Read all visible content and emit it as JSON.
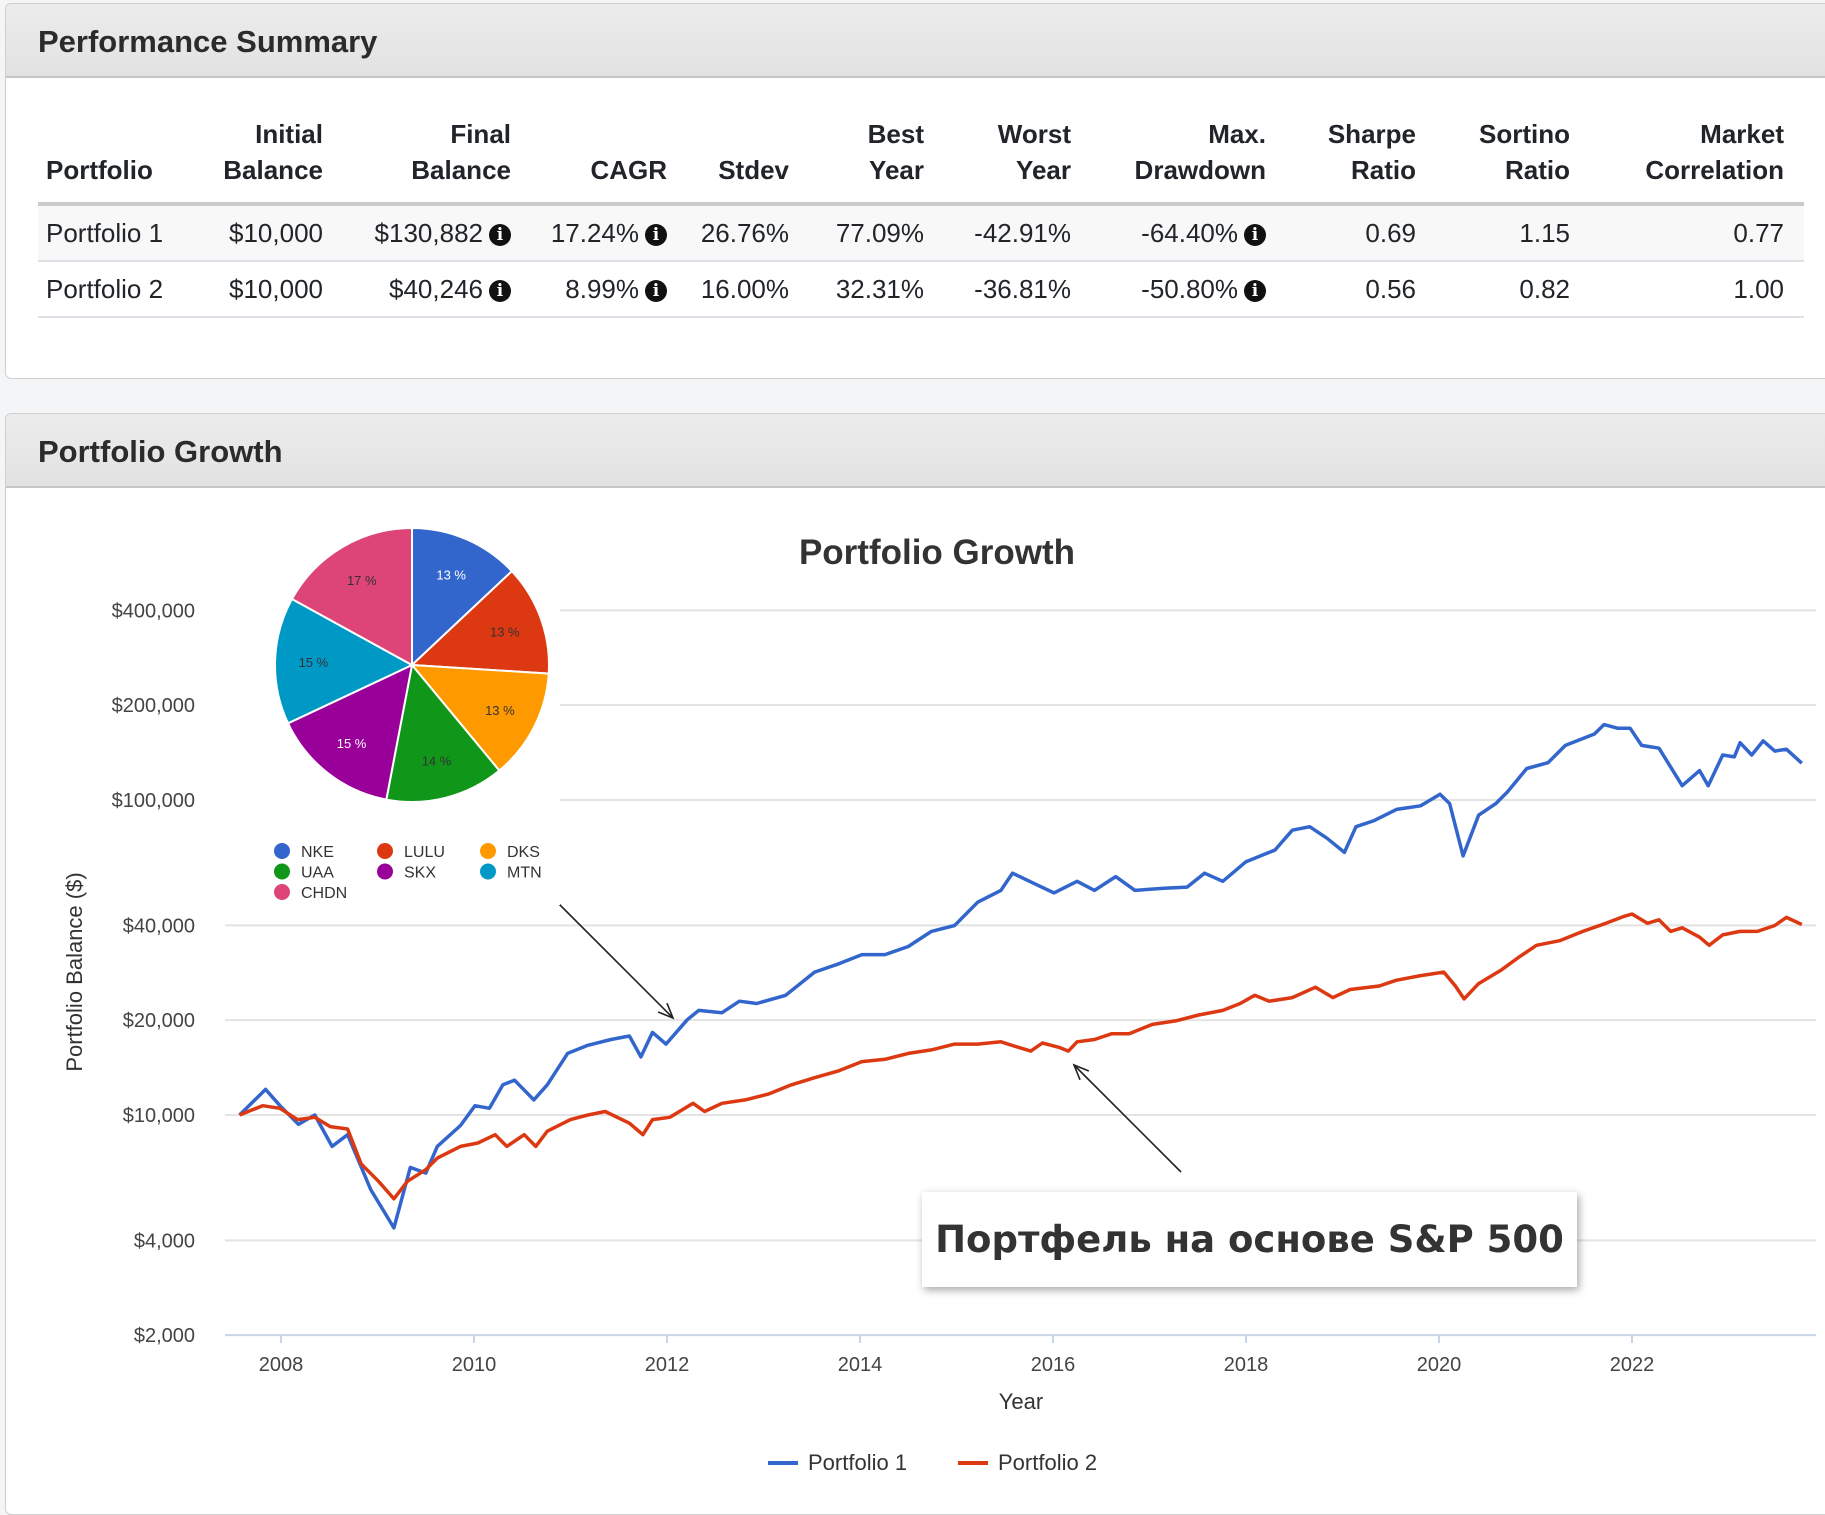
{
  "summary": {
    "title": "Performance Summary",
    "columns": [
      [
        "",
        "Portfolio"
      ],
      [
        "Initial",
        "Balance"
      ],
      [
        "Final",
        "Balance"
      ],
      [
        "",
        "CAGR"
      ],
      [
        "",
        "Stdev"
      ],
      [
        "Best",
        "Year"
      ],
      [
        "Worst",
        "Year"
      ],
      [
        "Max.",
        "Drawdown"
      ],
      [
        "Sharpe",
        "Ratio"
      ],
      [
        "Sortino",
        "Ratio"
      ],
      [
        "Market",
        "Correlation"
      ]
    ],
    "rows": [
      {
        "portfolio": "Portfolio 1",
        "initial": "$10,000",
        "final": "$130,882",
        "cagr": "17.24%",
        "stdev": "26.76%",
        "best": "77.09%",
        "worst": "-42.91%",
        "maxdd": "-64.40%",
        "sharpe": "0.69",
        "sortino": "1.15",
        "corr": "0.77"
      },
      {
        "portfolio": "Portfolio 2",
        "initial": "$10,000",
        "final": "$40,246",
        "cagr": "8.99%",
        "stdev": "16.00%",
        "best": "32.31%",
        "worst": "-36.81%",
        "maxdd": "-50.80%",
        "sharpe": "0.56",
        "sortino": "0.82",
        "corr": "1.00"
      }
    ],
    "info_icon": "i"
  },
  "growth": {
    "title": "Portfolio Growth",
    "annotation": "Портфель на основе S&P 500"
  },
  "chart_data": [
    {
      "type": "line",
      "title": "Portfolio Growth",
      "xlabel": "Year",
      "ylabel": "Portfolio Balance ($)",
      "yscale": "log",
      "ylim": [
        2000,
        400000
      ],
      "xlim": [
        2007.4,
        2023.9
      ],
      "yticks": [
        {
          "v": 400000,
          "label": "$400,000"
        },
        {
          "v": 200000,
          "label": "$200,000"
        },
        {
          "v": 100000,
          "label": "$100,000"
        },
        {
          "v": 40000,
          "label": "$40,000"
        },
        {
          "v": 20000,
          "label": "$20,000"
        },
        {
          "v": 10000,
          "label": "$10,000"
        },
        {
          "v": 4000,
          "label": "$4,000"
        },
        {
          "v": 2000,
          "label": "$2,000"
        }
      ],
      "xticks": [
        {
          "v": 2008,
          "label": "2008"
        },
        {
          "v": 2010,
          "label": "2010"
        },
        {
          "v": 2012,
          "label": "2012"
        },
        {
          "v": 2014,
          "label": "2014"
        },
        {
          "v": 2016,
          "label": "2016"
        },
        {
          "v": 2018,
          "label": "2018"
        },
        {
          "v": 2020,
          "label": "2020"
        },
        {
          "v": 2022,
          "label": "2022"
        }
      ],
      "grid": true,
      "legend": "bottom",
      "series": [
        {
          "name": "Portfolio 1",
          "color": "#3366cc",
          "points": [
            [
              2007.57,
              10000
            ],
            [
              2007.84,
              12060
            ],
            [
              2007.99,
              10700
            ],
            [
              2008.18,
              9340
            ],
            [
              2008.35,
              10000
            ],
            [
              2008.53,
              7950
            ],
            [
              2008.69,
              8660
            ],
            [
              2008.93,
              5800
            ],
            [
              2009.17,
              4380
            ],
            [
              2009.34,
              6820
            ],
            [
              2009.5,
              6540
            ],
            [
              2009.62,
              7950
            ],
            [
              2009.86,
              9260
            ],
            [
              2010.01,
              10700
            ],
            [
              2010.16,
              10500
            ],
            [
              2010.3,
              12470
            ],
            [
              2010.42,
              12900
            ],
            [
              2010.62,
              11170
            ],
            [
              2010.76,
              12470
            ],
            [
              2010.97,
              15690
            ],
            [
              2011.18,
              16650
            ],
            [
              2011.42,
              17370
            ],
            [
              2011.61,
              17820
            ],
            [
              2011.73,
              15290
            ],
            [
              2011.85,
              18290
            ],
            [
              2011.99,
              16790
            ],
            [
              2012.21,
              20070
            ],
            [
              2012.33,
              21480
            ],
            [
              2012.57,
              21130
            ],
            [
              2012.75,
              22980
            ],
            [
              2012.93,
              22600
            ],
            [
              2013.23,
              23980
            ],
            [
              2013.53,
              28420
            ],
            [
              2013.78,
              30190
            ],
            [
              2014.02,
              32300
            ],
            [
              2014.26,
              32300
            ],
            [
              2014.5,
              34270
            ],
            [
              2014.74,
              38260
            ],
            [
              2014.98,
              39950
            ],
            [
              2015.22,
              47370
            ],
            [
              2015.46,
              51640
            ],
            [
              2015.58,
              58570
            ],
            [
              2015.83,
              53840
            ],
            [
              2016.01,
              50720
            ],
            [
              2016.25,
              55180
            ],
            [
              2016.43,
              51640
            ],
            [
              2016.65,
              57110
            ],
            [
              2016.85,
              51640
            ],
            [
              2017.15,
              52470
            ],
            [
              2017.39,
              52910
            ],
            [
              2017.57,
              58570
            ],
            [
              2017.76,
              55180
            ],
            [
              2018.0,
              63690
            ],
            [
              2018.3,
              69330
            ],
            [
              2018.48,
              80210
            ],
            [
              2018.66,
              82260
            ],
            [
              2018.84,
              75580
            ],
            [
              2019.02,
              68180
            ],
            [
              2019.14,
              82260
            ],
            [
              2019.32,
              85820
            ],
            [
              2019.56,
              93390
            ],
            [
              2019.81,
              95840
            ],
            [
              2020.01,
              104300
            ],
            [
              2020.11,
              97500
            ],
            [
              2020.25,
              66450
            ],
            [
              2020.41,
              89500
            ],
            [
              2020.59,
              97500
            ],
            [
              2020.71,
              106100
            ],
            [
              2020.91,
              125900
            ],
            [
              2021.13,
              131300
            ],
            [
              2021.31,
              149000
            ],
            [
              2021.61,
              162000
            ],
            [
              2021.71,
              173500
            ],
            [
              2021.85,
              169000
            ],
            [
              2021.98,
              169000
            ],
            [
              2022.1,
              149000
            ],
            [
              2022.28,
              146000
            ],
            [
              2022.52,
              111000
            ],
            [
              2022.7,
              124000
            ],
            [
              2022.79,
              111000
            ],
            [
              2022.94,
              139000
            ],
            [
              2023.06,
              137000
            ],
            [
              2023.12,
              152000
            ],
            [
              2023.24,
              139000
            ],
            [
              2023.36,
              154000
            ],
            [
              2023.48,
              143000
            ],
            [
              2023.6,
              145000
            ],
            [
              2023.76,
              130882
            ]
          ]
        },
        {
          "name": "Portfolio 2",
          "color": "#dc3912",
          "points": [
            [
              2007.57,
              10000
            ],
            [
              2007.81,
              10700
            ],
            [
              2007.99,
              10500
            ],
            [
              2008.17,
              9670
            ],
            [
              2008.35,
              9830
            ],
            [
              2008.51,
              9190
            ],
            [
              2008.69,
              9030
            ],
            [
              2008.83,
              7000
            ],
            [
              2009.01,
              6160
            ],
            [
              2009.17,
              5420
            ],
            [
              2009.31,
              6160
            ],
            [
              2009.5,
              6710
            ],
            [
              2009.62,
              7300
            ],
            [
              2009.86,
              7950
            ],
            [
              2010.04,
              8150
            ],
            [
              2010.22,
              8660
            ],
            [
              2010.34,
              7950
            ],
            [
              2010.52,
              8660
            ],
            [
              2010.64,
              7950
            ],
            [
              2010.76,
              8880
            ],
            [
              2011.0,
              9670
            ],
            [
              2011.18,
              10000
            ],
            [
              2011.36,
              10260
            ],
            [
              2011.61,
              9420
            ],
            [
              2011.75,
              8660
            ],
            [
              2011.85,
              9670
            ],
            [
              2012.03,
              9830
            ],
            [
              2012.27,
              10890
            ],
            [
              2012.39,
              10260
            ],
            [
              2012.57,
              10890
            ],
            [
              2012.81,
              11170
            ],
            [
              2013.05,
              11650
            ],
            [
              2013.29,
              12470
            ],
            [
              2013.53,
              13130
            ],
            [
              2013.78,
              13810
            ],
            [
              2014.02,
              14780
            ],
            [
              2014.26,
              15030
            ],
            [
              2014.5,
              15690
            ],
            [
              2014.74,
              16090
            ],
            [
              2014.98,
              16790
            ],
            [
              2015.22,
              16790
            ],
            [
              2015.46,
              17070
            ],
            [
              2015.65,
              16370
            ],
            [
              2015.77,
              15950
            ],
            [
              2015.89,
              16930
            ],
            [
              2016.07,
              16370
            ],
            [
              2016.16,
              15950
            ],
            [
              2016.25,
              17070
            ],
            [
              2016.43,
              17370
            ],
            [
              2016.61,
              18120
            ],
            [
              2016.79,
              18120
            ],
            [
              2017.03,
              19390
            ],
            [
              2017.27,
              19900
            ],
            [
              2017.51,
              20770
            ],
            [
              2017.76,
              21480
            ],
            [
              2017.94,
              22600
            ],
            [
              2018.09,
              23980
            ],
            [
              2018.24,
              22980
            ],
            [
              2018.48,
              23580
            ],
            [
              2018.72,
              25460
            ],
            [
              2018.9,
              23580
            ],
            [
              2019.08,
              25030
            ],
            [
              2019.38,
              25670
            ],
            [
              2019.56,
              26790
            ],
            [
              2019.81,
              27710
            ],
            [
              2020.05,
              28420
            ],
            [
              2020.17,
              25670
            ],
            [
              2020.26,
              23370
            ],
            [
              2020.41,
              26130
            ],
            [
              2020.65,
              28920
            ],
            [
              2020.83,
              31740
            ],
            [
              2021.01,
              34560
            ],
            [
              2021.25,
              35750
            ],
            [
              2021.49,
              38260
            ],
            [
              2021.73,
              40610
            ],
            [
              2021.92,
              42750
            ],
            [
              2022.0,
              43470
            ],
            [
              2022.16,
              40610
            ],
            [
              2022.28,
              41650
            ],
            [
              2022.4,
              38260
            ],
            [
              2022.52,
              39280
            ],
            [
              2022.7,
              36670
            ],
            [
              2022.8,
              34560
            ],
            [
              2022.94,
              37290
            ],
            [
              2023.12,
              38260
            ],
            [
              2023.3,
              38260
            ],
            [
              2023.48,
              39950
            ],
            [
              2023.6,
              42400
            ],
            [
              2023.76,
              40246
            ]
          ]
        }
      ]
    },
    {
      "type": "pie",
      "labels": [
        "NKE",
        "LULU",
        "DKS",
        "UAA",
        "SKX",
        "MTN",
        "CHDN"
      ],
      "values": [
        13,
        13,
        13,
        14,
        15,
        15,
        17
      ],
      "slice_labels": [
        "13 %",
        "13 %",
        "13 %",
        "14 %",
        "15 %",
        "15 %",
        "17 %"
      ],
      "colors": [
        "#3366cc",
        "#dc3912",
        "#ff9900",
        "#109618",
        "#990099",
        "#0099c6",
        "#dd4477"
      ],
      "label_colors": [
        "#ffffff",
        "#333333",
        "#333333",
        "#333333",
        "#ffffff",
        "#333333",
        "#333333"
      ],
      "legend": "bottom"
    }
  ]
}
